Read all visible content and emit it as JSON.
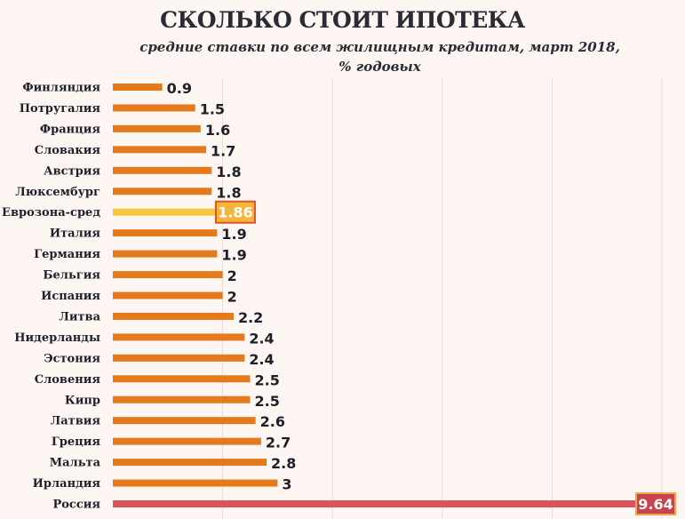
{
  "chart_data": {
    "type": "bar",
    "orientation": "horizontal",
    "title": "СКОЛЬКО СТОИТ ИПОТЕКА",
    "subtitle": "средние ставки по всем жилищным кредитам, март 2018, % годовых",
    "subtitle_lines": [
      "средние ставки по всем жилищным кредитам, март 2018,",
      "% годовых"
    ],
    "categories": [
      "Финляндия",
      "Потругалия",
      "Франция",
      "Словакия",
      "Австрия",
      "Люксембург",
      "Еврозона-сред",
      "Италия",
      "Германия",
      "Бельгия",
      "Испания",
      "Литва",
      "Нидерланды",
      "Эстония",
      "Словения",
      "Кипр",
      "Латвия",
      "Греция",
      "Мальта",
      "Ирландия",
      "Россия"
    ],
    "values": [
      0.9,
      1.5,
      1.6,
      1.7,
      1.8,
      1.8,
      1.86,
      1.9,
      1.9,
      2,
      2,
      2.2,
      2.4,
      2.4,
      2.5,
      2.5,
      2.6,
      2.7,
      2.8,
      3,
      9.64
    ],
    "value_labels": [
      "0.9",
      "1.5",
      "1.6",
      "1.7",
      "1.8",
      "1.8",
      "1.86",
      "1.9",
      "1.9",
      "2",
      "2",
      "2.2",
      "2.4",
      "2.4",
      "2.5",
      "2.5",
      "2.6",
      "2.7",
      "2.8",
      "3",
      "9.64"
    ],
    "highlight": {
      "Еврозона-сред": "eurozone",
      "Россия": "russia"
    },
    "xlim": [
      0,
      10
    ],
    "grid": true,
    "colors": {
      "bar": "#e47a1c",
      "eurozone_bar": "#f5c842",
      "eurozone_label_bg": "#f7b43a",
      "eurozone_label_border": "#d9572a",
      "russia_bar": "#d9545c",
      "russia_label_bg": "#c8444c",
      "russia_label_border": "#f2a64a",
      "grid": "#ecdcd8"
    }
  }
}
